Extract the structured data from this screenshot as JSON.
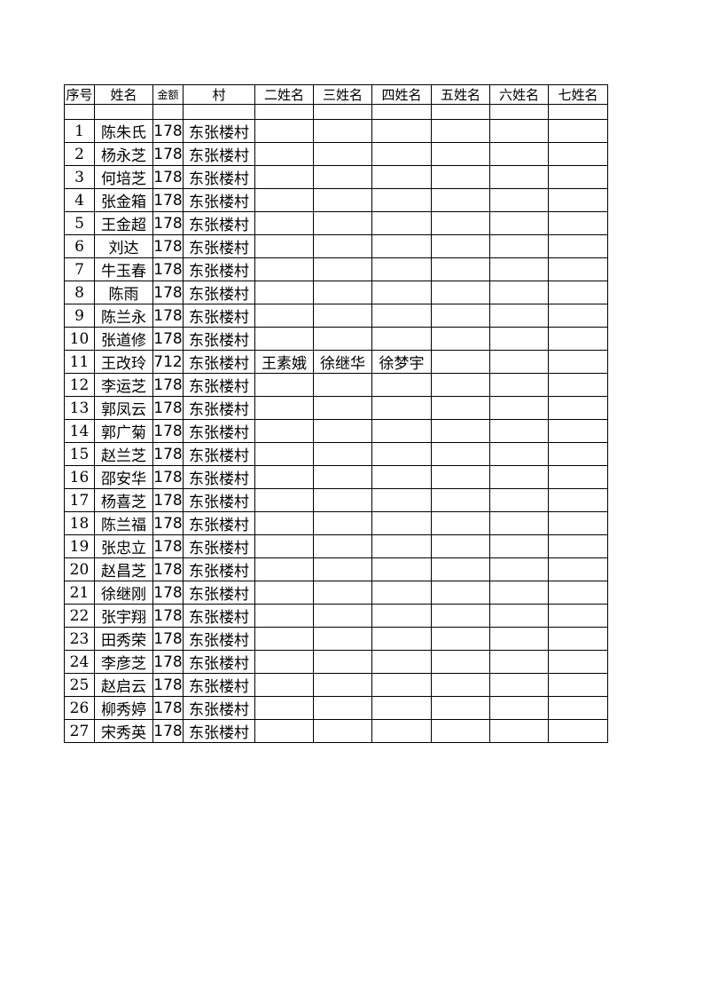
{
  "headers": [
    "序号",
    "姓名",
    "金额",
    "村",
    "二姓名",
    "三姓名",
    "四姓名",
    "五姓名",
    "六姓名",
    "七姓名"
  ],
  "rows": [
    {
      "no": "1",
      "name": "陈朱氏",
      "amount": "178",
      "village": "东张楼村",
      "others": [
        "",
        "",
        "",
        "",
        "",
        ""
      ]
    },
    {
      "no": "2",
      "name": "杨永芝",
      "amount": "178",
      "village": "东张楼村",
      "others": [
        "",
        "",
        "",
        "",
        "",
        ""
      ]
    },
    {
      "no": "3",
      "name": "何培芝",
      "amount": "178",
      "village": "东张楼村",
      "others": [
        "",
        "",
        "",
        "",
        "",
        ""
      ]
    },
    {
      "no": "4",
      "name": "张金箱",
      "amount": "178",
      "village": "东张楼村",
      "others": [
        "",
        "",
        "",
        "",
        "",
        ""
      ]
    },
    {
      "no": "5",
      "name": "王金超",
      "amount": "178",
      "village": "东张楼村",
      "others": [
        "",
        "",
        "",
        "",
        "",
        ""
      ]
    },
    {
      "no": "6",
      "name": "刘达",
      "amount": "178",
      "village": "东张楼村",
      "others": [
        "",
        "",
        "",
        "",
        "",
        ""
      ]
    },
    {
      "no": "7",
      "name": "牛玉春",
      "amount": "178",
      "village": "东张楼村",
      "others": [
        "",
        "",
        "",
        "",
        "",
        ""
      ]
    },
    {
      "no": "8",
      "name": "陈雨",
      "amount": "178",
      "village": "东张楼村",
      "others": [
        "",
        "",
        "",
        "",
        "",
        ""
      ]
    },
    {
      "no": "9",
      "name": "陈兰永",
      "amount": "178",
      "village": "东张楼村",
      "others": [
        "",
        "",
        "",
        "",
        "",
        ""
      ]
    },
    {
      "no": "10",
      "name": "张道修",
      "amount": "178",
      "village": "东张楼村",
      "others": [
        "",
        "",
        "",
        "",
        "",
        ""
      ]
    },
    {
      "no": "11",
      "name": "王改玲",
      "amount": "712",
      "village": "东张楼村",
      "others": [
        "王素娥",
        "徐继华",
        "徐梦宇",
        "",
        "",
        ""
      ]
    },
    {
      "no": "12",
      "name": "李运芝",
      "amount": "178",
      "village": "东张楼村",
      "others": [
        "",
        "",
        "",
        "",
        "",
        ""
      ]
    },
    {
      "no": "13",
      "name": "郭凤云",
      "amount": "178",
      "village": "东张楼村",
      "others": [
        "",
        "",
        "",
        "",
        "",
        ""
      ]
    },
    {
      "no": "14",
      "name": "郭广菊",
      "amount": "178",
      "village": "东张楼村",
      "others": [
        "",
        "",
        "",
        "",
        "",
        ""
      ]
    },
    {
      "no": "15",
      "name": "赵兰芝",
      "amount": "178",
      "village": "东张楼村",
      "others": [
        "",
        "",
        "",
        "",
        "",
        ""
      ]
    },
    {
      "no": "16",
      "name": "邵安华",
      "amount": "178",
      "village": "东张楼村",
      "others": [
        "",
        "",
        "",
        "",
        "",
        ""
      ]
    },
    {
      "no": "17",
      "name": "杨喜芝",
      "amount": "178",
      "village": "东张楼村",
      "others": [
        "",
        "",
        "",
        "",
        "",
        ""
      ]
    },
    {
      "no": "18",
      "name": "陈兰福",
      "amount": "178",
      "village": "东张楼村",
      "others": [
        "",
        "",
        "",
        "",
        "",
        ""
      ]
    },
    {
      "no": "19",
      "name": "张忠立",
      "amount": "178",
      "village": "东张楼村",
      "others": [
        "",
        "",
        "",
        "",
        "",
        ""
      ]
    },
    {
      "no": "20",
      "name": "赵昌芝",
      "amount": "178",
      "village": "东张楼村",
      "others": [
        "",
        "",
        "",
        "",
        "",
        ""
      ]
    },
    {
      "no": "21",
      "name": "徐继刚",
      "amount": "178",
      "village": "东张楼村",
      "others": [
        "",
        "",
        "",
        "",
        "",
        ""
      ]
    },
    {
      "no": "22",
      "name": "张宇翔",
      "amount": "178",
      "village": "东张楼村",
      "others": [
        "",
        "",
        "",
        "",
        "",
        ""
      ]
    },
    {
      "no": "23",
      "name": "田秀荣",
      "amount": "178",
      "village": "东张楼村",
      "others": [
        "",
        "",
        "",
        "",
        "",
        ""
      ]
    },
    {
      "no": "24",
      "name": "李彦芝",
      "amount": "178",
      "village": "东张楼村",
      "others": [
        "",
        "",
        "",
        "",
        "",
        ""
      ]
    },
    {
      "no": "25",
      "name": "赵启云",
      "amount": "178",
      "village": "东张楼村",
      "others": [
        "",
        "",
        "",
        "",
        "",
        ""
      ]
    },
    {
      "no": "26",
      "name": "柳秀婷",
      "amount": "178",
      "village": "东张楼村",
      "others": [
        "",
        "",
        "",
        "",
        "",
        ""
      ]
    },
    {
      "no": "27",
      "name": "宋秀英",
      "amount": "178",
      "village": "东张楼村",
      "others": [
        "",
        "",
        "",
        "",
        "",
        ""
      ]
    }
  ]
}
